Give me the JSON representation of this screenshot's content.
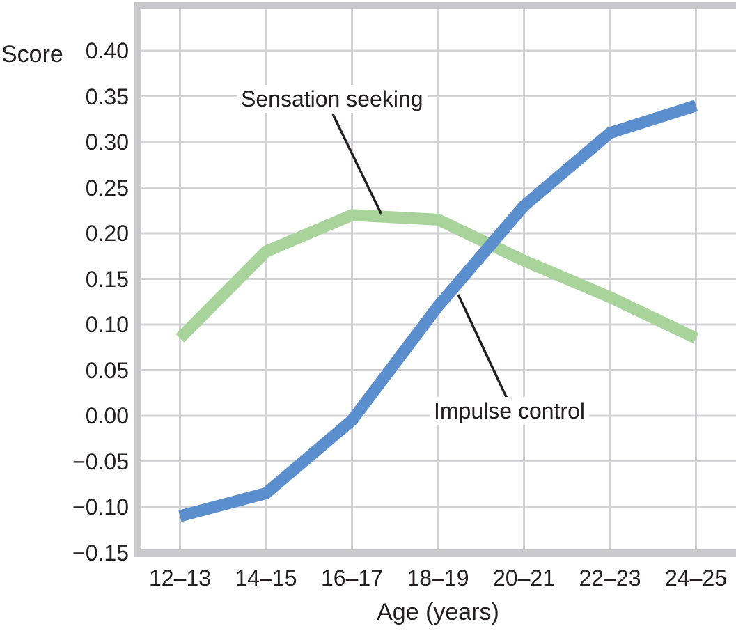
{
  "chart_data": {
    "type": "line",
    "title": "",
    "xlabel": "Age (years)",
    "ylabel": "Score",
    "categories": [
      "12–13",
      "14–15",
      "16–17",
      "18–19",
      "20–21",
      "22–23",
      "24–25"
    ],
    "series": [
      {
        "name": "Sensation seeking",
        "color": "#a8d49b",
        "values": [
          0.085,
          0.18,
          0.22,
          0.215,
          0.17,
          0.13,
          0.085
        ]
      },
      {
        "name": "Impulse control",
        "color": "#5b8ecd",
        "values": [
          -0.11,
          -0.085,
          -0.005,
          0.12,
          0.23,
          0.31,
          0.34
        ]
      }
    ],
    "yticks": [
      0.4,
      0.35,
      0.3,
      0.25,
      0.2,
      0.15,
      0.1,
      0.05,
      0.0,
      -0.05,
      -0.1,
      -0.15
    ],
    "ytick_labels": [
      "0.40",
      "0.35",
      "0.30",
      "0.25",
      "0.20",
      "0.15",
      "0.10",
      "0.05",
      "0.00",
      "−0.05",
      "−0.10",
      "−0.15"
    ],
    "ylim": [
      -0.15,
      0.45
    ],
    "grid": true,
    "legend_position": "inline-annotations",
    "annotations": [
      {
        "text": "Sensation seeking",
        "points_to_series": "Sensation seeking"
      },
      {
        "text": "Impulse control",
        "points_to_series": "Impulse control"
      }
    ]
  },
  "colors": {
    "grid": "#d3d3d5",
    "frame": "#c9c9cc",
    "text": "#231f20",
    "background": "#ffffff",
    "pointer_line": "#231f20"
  }
}
